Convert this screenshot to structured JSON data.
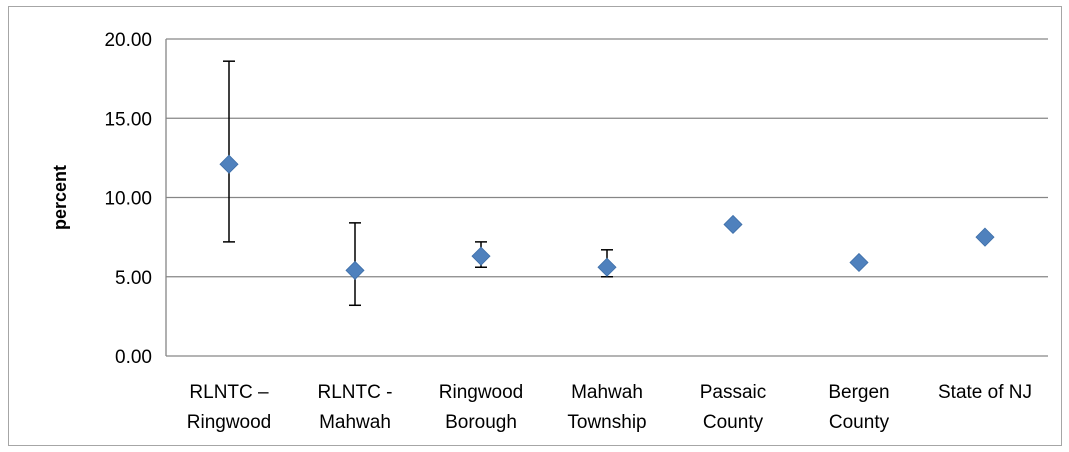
{
  "chart_data": {
    "type": "scatter",
    "title": "",
    "xlabel": "",
    "ylabel": "percent",
    "ylim": [
      0,
      20
    ],
    "yticks": [
      "0.00",
      "5.00",
      "10.00",
      "15.00",
      "20.00"
    ],
    "grid": true,
    "legend": "none",
    "marker": "diamond",
    "colors": {
      "marker": "#4f81bd",
      "gridline": "#868686",
      "errorbar": "#000000"
    },
    "categories": [
      [
        "RLNTC –",
        "Ringwood"
      ],
      [
        "RLNTC -",
        "Mahwah"
      ],
      [
        "Ringwood",
        "Borough"
      ],
      [
        "Mahwah",
        "Township"
      ],
      [
        "Passaic",
        "County"
      ],
      [
        "Bergen",
        "County"
      ],
      [
        "State of NJ"
      ]
    ],
    "series": [
      {
        "values": [
          12.1,
          5.4,
          6.3,
          5.6,
          8.3,
          5.9,
          7.5
        ],
        "error_low": [
          7.2,
          3.2,
          5.6,
          5.0,
          null,
          null,
          null
        ],
        "error_high": [
          18.6,
          8.4,
          7.2,
          6.7,
          null,
          null,
          null
        ]
      }
    ]
  }
}
